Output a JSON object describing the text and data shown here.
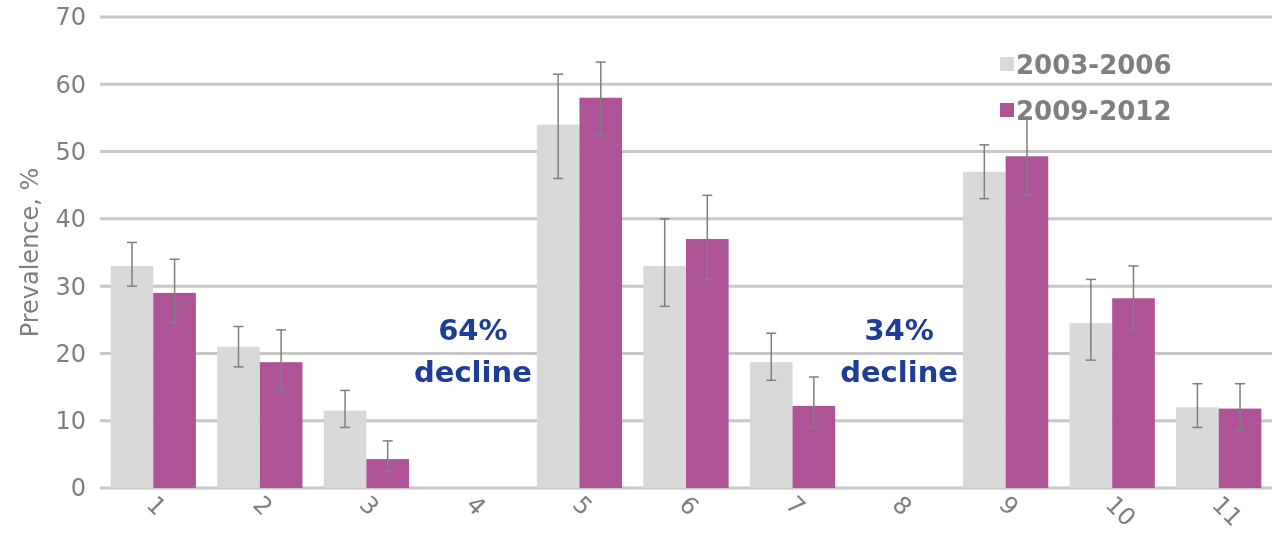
{
  "chart_data": {
    "type": "bar",
    "ylabel": "Prevalence, %",
    "categories": [
      "1",
      "2",
      "3",
      "4",
      "5",
      "6",
      "7",
      "8",
      "9",
      "10",
      "11"
    ],
    "series": [
      {
        "name": "2003-2006",
        "color": "#d9d9d9",
        "values": [
          33,
          21,
          11.5,
          null,
          54,
          33,
          18.7,
          null,
          47,
          24.5,
          12
        ],
        "errors": [
          [
            30,
            36.5
          ],
          [
            18,
            24
          ],
          [
            9,
            14.5
          ],
          null,
          [
            46,
            61.5
          ],
          [
            27,
            40
          ],
          [
            16,
            23
          ],
          null,
          [
            43,
            51
          ],
          [
            19,
            31
          ],
          [
            9,
            15.5
          ]
        ]
      },
      {
        "name": "2009-2012",
        "color": "#ad5396",
        "values": [
          29,
          18.7,
          4.3,
          null,
          58,
          37,
          12.2,
          null,
          49.3,
          28.2,
          11.8
        ],
        "errors": [
          [
            24.5,
            34
          ],
          [
            14.5,
            23.5
          ],
          [
            2.5,
            7
          ],
          null,
          [
            52.5,
            63.3
          ],
          [
            31,
            43.5
          ],
          [
            9,
            16.5
          ],
          null,
          [
            43.5,
            55
          ],
          [
            23.5,
            33
          ],
          [
            8.5,
            15.5
          ]
        ]
      }
    ],
    "ylim": [
      0,
      70
    ],
    "yticks": [
      0,
      10,
      20,
      30,
      40,
      50,
      60,
      70
    ],
    "grid": "y",
    "legend": "top right",
    "annotations": [
      "64%\ndecline",
      "34%\ndecline"
    ]
  }
}
